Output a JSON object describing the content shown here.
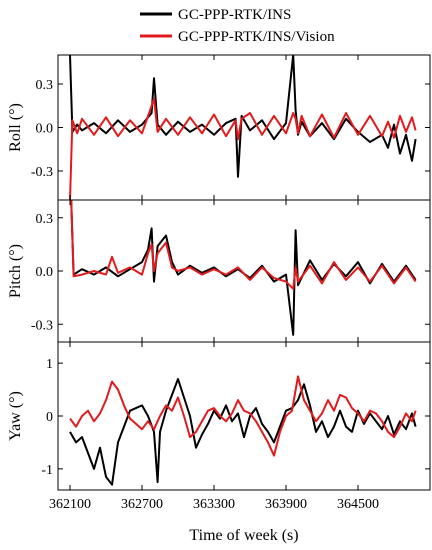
{
  "legend": [
    {
      "label": "GC-PPP-RTK/INS",
      "color": "#000000"
    },
    {
      "label": "GC-PPP-RTK/INS/Vision",
      "color": "#e31a1c"
    }
  ],
  "chart_data": [
    {
      "type": "line",
      "ylabel": "Roll (°)",
      "xlim": [
        362000,
        365100
      ],
      "ylim": [
        -0.5,
        0.5
      ],
      "yticks": [
        -0.3,
        0.0,
        0.3
      ],
      "ytick_labels": [
        "-0.3",
        "0.0",
        "0.3"
      ],
      "grid": false,
      "series": [
        {
          "name": "GC-PPP-RTK/INS",
          "color": "#000000",
          "x": [
            362100,
            362120,
            362160,
            362200,
            362300,
            362400,
            362500,
            362600,
            362700,
            362780,
            362800,
            362830,
            362900,
            363000,
            363100,
            363200,
            363300,
            363400,
            363480,
            363500,
            363530,
            363600,
            363700,
            363800,
            363900,
            363960,
            363980,
            364000,
            364030,
            364100,
            364200,
            364300,
            364400,
            364500,
            364600,
            364700,
            364750,
            364800,
            364850,
            364900,
            364950,
            364980
          ],
          "y": [
            0.5,
            -0.03,
            0.02,
            -0.02,
            0.03,
            -0.04,
            0.05,
            -0.03,
            0.02,
            0.1,
            0.34,
            0.02,
            -0.05,
            0.04,
            -0.03,
            0.02,
            -0.05,
            0.03,
            0.06,
            -0.34,
            0.08,
            -0.02,
            0.05,
            -0.08,
            0.03,
            0.5,
            0.12,
            -0.05,
            0.04,
            -0.06,
            0.03,
            -0.08,
            0.06,
            -0.03,
            -0.1,
            -0.05,
            -0.14,
            0.02,
            -0.18,
            -0.05,
            -0.23,
            -0.08
          ]
        },
        {
          "name": "GC-PPP-RTK/INS/Vision",
          "color": "#e31a1c",
          "x": [
            362100,
            362120,
            362160,
            362200,
            362300,
            362400,
            362500,
            362600,
            362700,
            362780,
            362800,
            362830,
            362900,
            363000,
            363100,
            363200,
            363300,
            363400,
            363480,
            363500,
            363530,
            363600,
            363700,
            363800,
            363900,
            363960,
            363980,
            364000,
            364030,
            364100,
            364200,
            364300,
            364400,
            364500,
            364600,
            364700,
            364750,
            364800,
            364850,
            364900,
            364950,
            364980
          ],
          "y": [
            -0.5,
            0.05,
            -0.04,
            0.06,
            -0.05,
            0.07,
            -0.06,
            0.05,
            -0.04,
            0.15,
            0.2,
            -0.03,
            0.06,
            -0.05,
            0.07,
            -0.04,
            0.09,
            -0.06,
            0.05,
            -0.08,
            0.06,
            0.1,
            -0.05,
            0.08,
            -0.04,
            0.1,
            0.06,
            -0.04,
            0.08,
            -0.06,
            0.09,
            -0.07,
            0.1,
            -0.05,
            0.08,
            -0.06,
            0.04,
            -0.07,
            0.08,
            -0.03,
            0.07,
            -0.02
          ]
        }
      ]
    },
    {
      "type": "line",
      "ylabel": "Pitch (°)",
      "xlim": [
        362000,
        365100
      ],
      "ylim": [
        -0.4,
        0.4
      ],
      "yticks": [
        -0.3,
        0.0,
        0.3
      ],
      "ytick_labels": [
        "-0.3",
        "0.0",
        "0.3"
      ],
      "grid": false,
      "series": [
        {
          "name": "GC-PPP-RTK/INS",
          "color": "#000000",
          "x": [
            362100,
            362110,
            362130,
            362200,
            362300,
            362400,
            362500,
            362600,
            362700,
            362750,
            362780,
            362800,
            362830,
            362900,
            362950,
            363000,
            363100,
            363200,
            363300,
            363400,
            363500,
            363600,
            363700,
            363800,
            363900,
            363960,
            363980,
            364000,
            364100,
            364200,
            364300,
            364400,
            364500,
            364600,
            364700,
            364800,
            364900,
            364980
          ],
          "y": [
            0.4,
            0.4,
            -0.02,
            0.01,
            -0.02,
            0.02,
            -0.03,
            0.01,
            0.05,
            0.12,
            0.24,
            -0.06,
            0.14,
            0.2,
            0.05,
            -0.02,
            0.03,
            -0.01,
            0.02,
            -0.03,
            0.01,
            -0.04,
            0.03,
            -0.06,
            -0.02,
            -0.36,
            0.23,
            -0.08,
            0.06,
            -0.05,
            0.04,
            -0.03,
            0.05,
            -0.07,
            0.04,
            -0.06,
            0.03,
            -0.05
          ]
        },
        {
          "name": "GC-PPP-RTK/INS/Vision",
          "color": "#e31a1c",
          "x": [
            362100,
            362110,
            362130,
            362200,
            362300,
            362400,
            362450,
            362500,
            362600,
            362700,
            362750,
            362780,
            362800,
            362830,
            362900,
            362950,
            363000,
            363100,
            363200,
            363300,
            363400,
            363500,
            363600,
            363700,
            363800,
            363900,
            363960,
            363980,
            364000,
            364100,
            364200,
            364300,
            364400,
            364500,
            364600,
            364700,
            364800,
            364900,
            364980
          ],
          "y": [
            0.4,
            0.4,
            -0.03,
            -0.02,
            0.0,
            -0.02,
            0.08,
            -0.01,
            0.02,
            -0.02,
            0.1,
            0.15,
            0.0,
            0.1,
            0.16,
            0.02,
            0.0,
            0.02,
            -0.02,
            0.01,
            -0.02,
            0.02,
            -0.05,
            0.02,
            -0.04,
            -0.06,
            -0.1,
            0.02,
            -0.06,
            0.03,
            -0.07,
            0.05,
            -0.05,
            0.02,
            -0.06,
            0.03,
            -0.07,
            0.02,
            -0.06
          ]
        }
      ]
    },
    {
      "type": "line",
      "ylabel": "Yaw (°)",
      "xlabel": "Time of week (s)",
      "xlim": [
        362000,
        365100
      ],
      "ylim": [
        -1.4,
        1.4
      ],
      "yticks": [
        -1,
        0,
        1
      ],
      "ytick_labels": [
        "-1",
        "0",
        "1"
      ],
      "xticks": [
        362100,
        362700,
        363300,
        363900,
        364500
      ],
      "xtick_labels": [
        "362100",
        "362700",
        "363300",
        "363900",
        "364500"
      ],
      "grid": false,
      "series": [
        {
          "name": "GC-PPP-RTK/INS",
          "color": "#000000",
          "x": [
            362100,
            362150,
            362200,
            362250,
            362300,
            362350,
            362400,
            362450,
            362500,
            362550,
            362600,
            362650,
            362700,
            362750,
            362800,
            362830,
            362850,
            362900,
            362950,
            363000,
            363050,
            363100,
            363150,
            363200,
            363250,
            363300,
            363350,
            363400,
            363450,
            363500,
            363550,
            363600,
            363650,
            363700,
            363750,
            363800,
            363850,
            363900,
            363950,
            364000,
            364050,
            364100,
            364150,
            364200,
            364250,
            364300,
            364350,
            364400,
            364450,
            364500,
            364550,
            364600,
            364650,
            364700,
            364750,
            364800,
            364850,
            364900,
            364950,
            364980
          ],
          "y": [
            -0.3,
            -0.5,
            -0.4,
            -0.7,
            -1.0,
            -0.6,
            -1.15,
            -1.3,
            -0.5,
            -0.2,
            0.1,
            0.15,
            0.2,
            0.0,
            -0.3,
            -1.25,
            -0.3,
            0.1,
            0.4,
            0.7,
            0.35,
            0.0,
            -0.6,
            -0.35,
            -0.15,
            0.1,
            -0.05,
            0.2,
            -0.1,
            0.05,
            -0.4,
            0.0,
            0.15,
            -0.15,
            -0.3,
            -0.5,
            -0.2,
            0.1,
            0.15,
            0.3,
            0.6,
            0.2,
            -0.3,
            -0.1,
            -0.4,
            -0.2,
            0.1,
            -0.2,
            -0.3,
            0.1,
            -0.15,
            0.05,
            -0.1,
            -0.25,
            0.0,
            -0.35,
            -0.1,
            -0.25,
            0.05,
            -0.2
          ]
        },
        {
          "name": "GC-PPP-RTK/INS/Vision",
          "color": "#e31a1c",
          "x": [
            362100,
            362150,
            362200,
            362250,
            362300,
            362350,
            362400,
            362450,
            362500,
            362550,
            362600,
            362650,
            362700,
            362750,
            362800,
            362850,
            362900,
            362950,
            363000,
            363050,
            363100,
            363150,
            363200,
            363250,
            363300,
            363350,
            363400,
            363450,
            363500,
            363550,
            363600,
            363650,
            363700,
            363750,
            363800,
            363850,
            363900,
            363950,
            364000,
            364050,
            364100,
            364150,
            364200,
            364250,
            364300,
            364350,
            364400,
            364450,
            364500,
            364550,
            364600,
            364650,
            364700,
            364750,
            364800,
            364850,
            364900,
            364950,
            364980
          ],
          "y": [
            -0.05,
            -0.2,
            0.0,
            0.1,
            -0.1,
            0.05,
            0.3,
            0.65,
            0.5,
            0.2,
            -0.05,
            -0.15,
            -0.25,
            -0.1,
            -0.25,
            0.0,
            0.2,
            0.1,
            0.35,
            0.0,
            -0.4,
            -0.3,
            -0.1,
            0.1,
            0.15,
            0.0,
            -0.1,
            0.05,
            0.3,
            0.1,
            0.05,
            -0.1,
            -0.3,
            -0.5,
            -0.75,
            -0.3,
            0.0,
            0.1,
            0.75,
            0.3,
            0.1,
            -0.1,
            0.05,
            0.3,
            0.1,
            0.4,
            0.35,
            0.15,
            0.05,
            -0.1,
            0.1,
            0.05,
            -0.1,
            -0.3,
            -0.4,
            -0.2,
            0.05,
            -0.1,
            0.1
          ]
        }
      ]
    }
  ]
}
